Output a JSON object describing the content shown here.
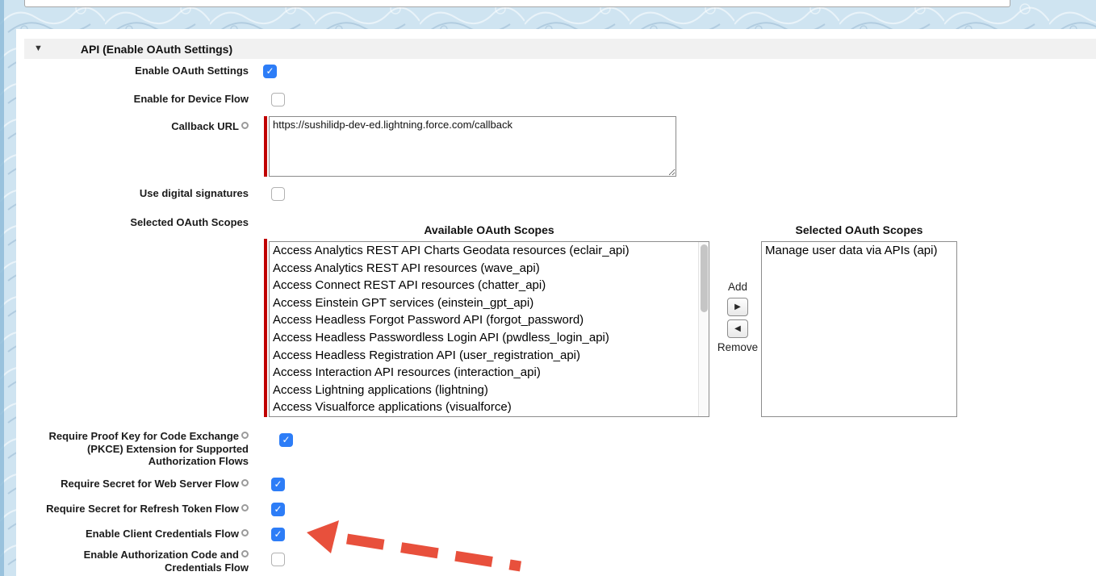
{
  "section": {
    "title": "API (Enable OAuth Settings)",
    "collapse_icon": "▼"
  },
  "rows": {
    "enable_oauth": {
      "label": "Enable OAuth Settings",
      "checked": true
    },
    "device_flow": {
      "label": "Enable for Device Flow",
      "checked": false
    },
    "callback_url": {
      "label": "Callback URL",
      "value": "https://sushilidp-dev-ed.lightning.force.com/callback",
      "required": true
    },
    "digital_signatures": {
      "label": "Use digital signatures",
      "checked": false
    },
    "scopes": {
      "label": "Selected OAuth Scopes",
      "required": true,
      "available_header": "Available OAuth Scopes",
      "selected_header": "Selected OAuth Scopes",
      "add_label": "Add",
      "remove_label": "Remove",
      "add_icon": "▶",
      "remove_icon": "◀",
      "available_options": [
        "Access Analytics REST API Charts Geodata resources (eclair_api)",
        "Access Analytics REST API resources (wave_api)",
        "Access Connect REST API resources (chatter_api)",
        "Access Einstein GPT services (einstein_gpt_api)",
        "Access Headless Forgot Password API (forgot_password)",
        "Access Headless Passwordless Login API (pwdless_login_api)",
        "Access Headless Registration API (user_registration_api)",
        "Access Interaction API resources (interaction_api)",
        "Access Lightning applications (lightning)",
        "Access Visualforce applications (visualforce)"
      ],
      "selected_options": [
        "Manage user data via APIs (api)"
      ]
    },
    "pkce": {
      "label_line1": "Require Proof Key for Code Exchange",
      "label_line2": "(PKCE) Extension for Supported",
      "label_line3": "Authorization Flows",
      "checked": true
    },
    "web_server_secret": {
      "label": "Require Secret for Web Server Flow",
      "checked": true
    },
    "refresh_token_secret": {
      "label": "Require Secret for Refresh Token Flow",
      "checked": true
    },
    "client_credentials": {
      "label": "Enable Client Credentials Flow",
      "checked": true
    },
    "auth_code_credentials": {
      "label_line1": "Enable Authorization Code and",
      "label_line2": "Credentials Flow",
      "checked": false
    }
  },
  "colors": {
    "checkbox_checked": "#2d7df7",
    "required_marker": "#c00000",
    "annotation_arrow": "#e8503c"
  }
}
